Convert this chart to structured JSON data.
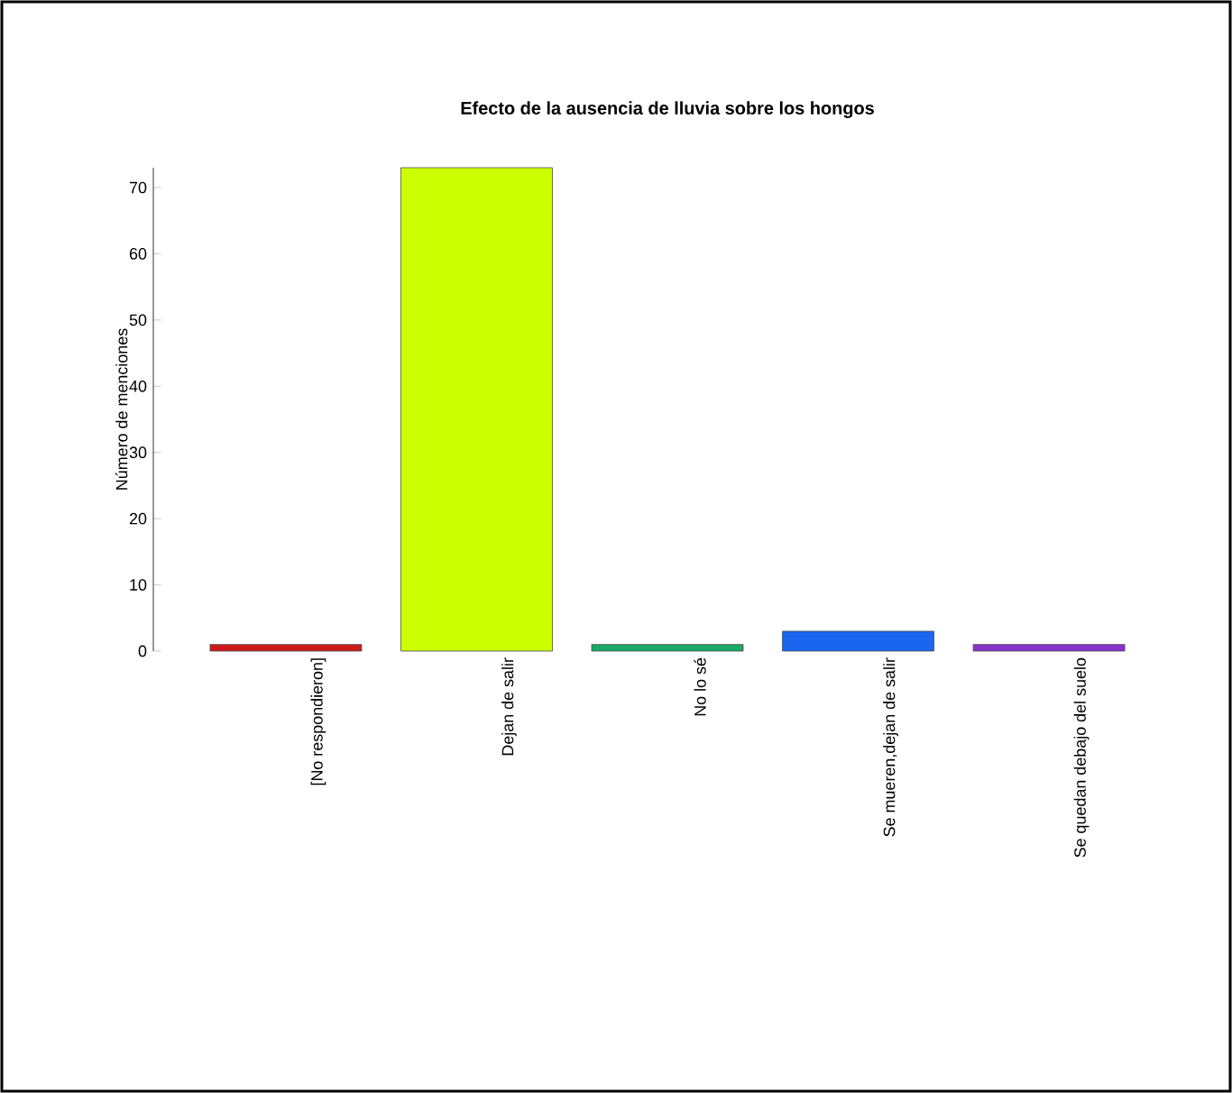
{
  "chart_data": {
    "type": "bar",
    "title": "Efecto de la ausencia de lluvia sobre los hongos",
    "ylabel": "Número de menciones",
    "categories": [
      "[No respondieron]",
      "Dejan de salir",
      "No lo sé",
      "Se mueren,dejan de salir",
      "Se quedan debajo del suelo"
    ],
    "values": [
      1,
      73,
      1,
      3,
      1
    ],
    "colors": [
      "#cc1a1a",
      "#ccff00",
      "#1aaa66",
      "#1a66ee",
      "#8833cc"
    ],
    "ylim": [
      0,
      73
    ],
    "yticks": [
      0,
      10,
      20,
      30,
      40,
      50,
      60,
      70
    ]
  }
}
